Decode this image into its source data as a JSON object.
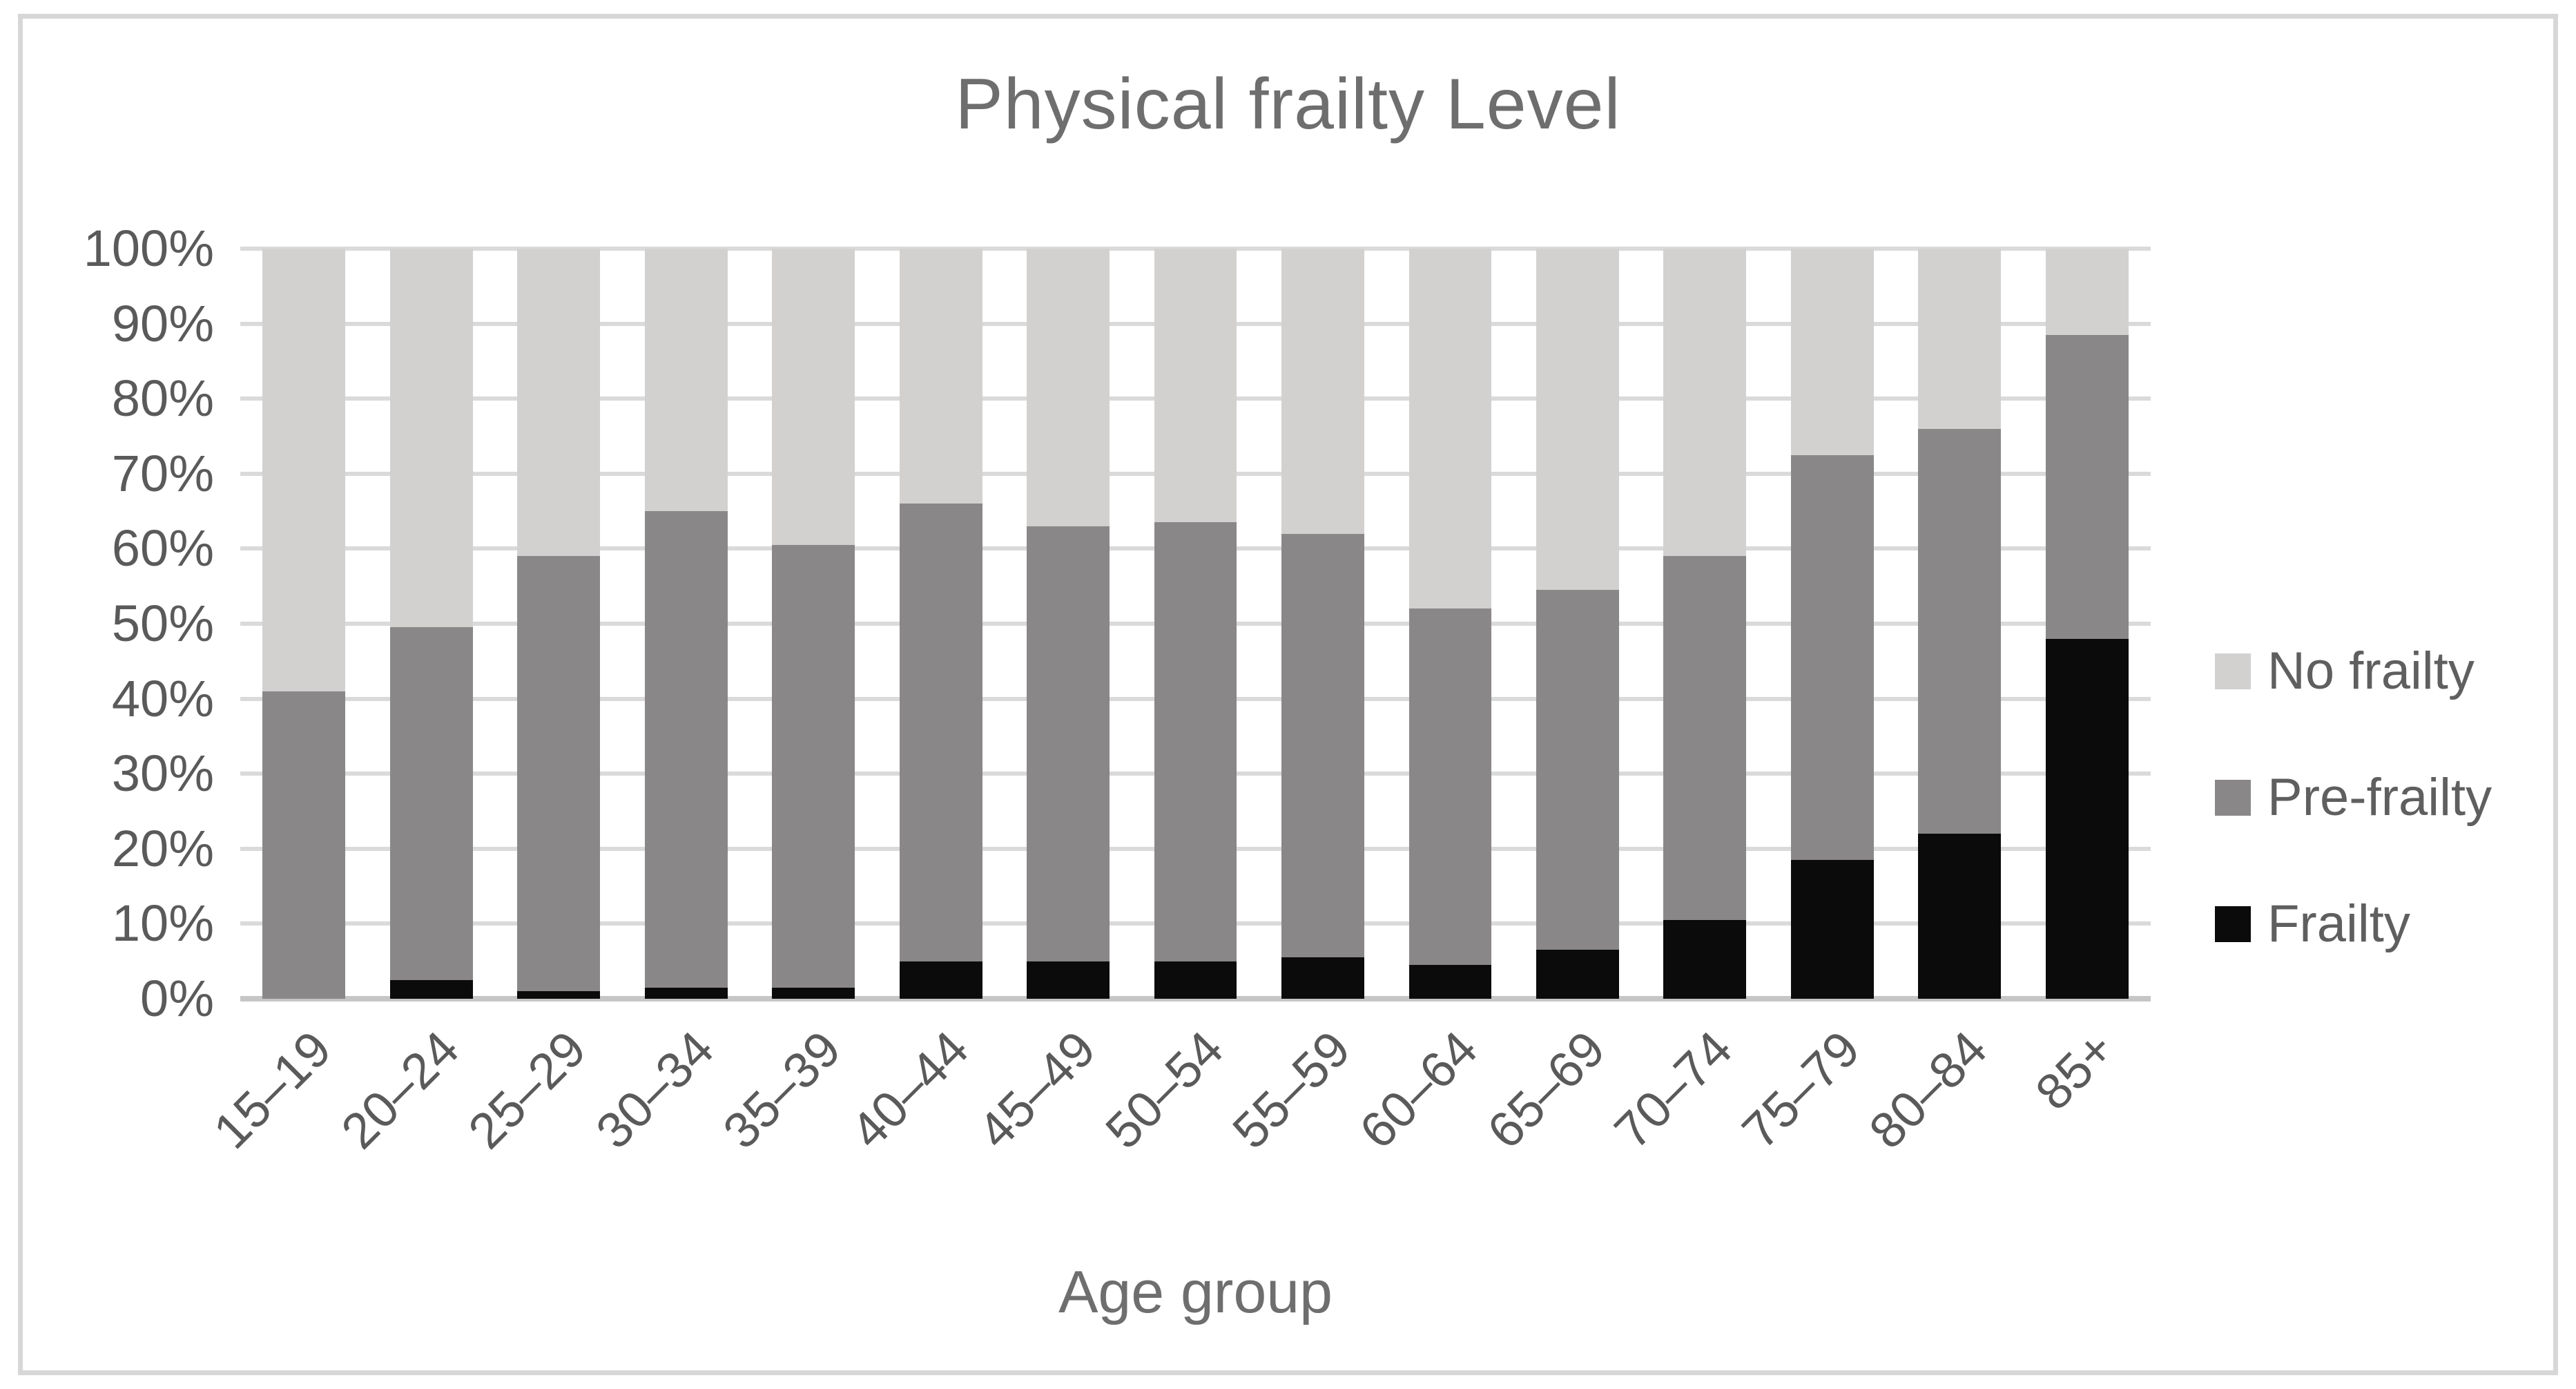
{
  "figure": {
    "title": "Physical frailty Level",
    "x_axis_title": "Age group"
  },
  "legend": {
    "position": "right",
    "items": [
      {
        "label": "No frailty",
        "color": "#d3d0d0"
      },
      {
        "label": "Pre-frailty",
        "color": "#8a8788"
      },
      {
        "label": "Frailty",
        "color": "#0b0b0b"
      }
    ]
  },
  "colors": {
    "no_frailty": "#d3d0d0",
    "pre_frailty": "#8a8788",
    "frailty": "#0b0b0b",
    "gridline": "#dadada",
    "axis_line": "#c6c6c6",
    "tick_text": "#5a5a5a",
    "title_text": "#6e6e6e",
    "frame_border": "#d7d7d7"
  },
  "chart_data": {
    "type": "bar",
    "stacked": true,
    "stacked_as": "percent",
    "title": "Physical frailty Level",
    "xlabel": "Age group",
    "ylabel": "",
    "ylim": [
      0,
      100
    ],
    "y_step": 10,
    "y_tick_labels": [
      "0%",
      "10%",
      "20%",
      "30%",
      "40%",
      "50%",
      "60%",
      "70%",
      "80%",
      "90%",
      "100%"
    ],
    "grid": true,
    "legend_position": "right",
    "categories": [
      "15–19",
      "20–24",
      "25–29",
      "30–34",
      "35–39",
      "40–44",
      "45–49",
      "50–54",
      "55–59",
      "60–64",
      "65–69",
      "70–74",
      "75–79",
      "80–84",
      "85+"
    ],
    "series": [
      {
        "name": "Frailty",
        "color": "#0b0b0b",
        "values": [
          0,
          2.5,
          1,
          1.5,
          1.5,
          5,
          5,
          5,
          5.5,
          4.5,
          6.5,
          10.5,
          18.5,
          22,
          48
        ]
      },
      {
        "name": "Pre-frailty",
        "color": "#8a8788",
        "values": [
          41,
          47,
          58,
          63.5,
          59,
          61,
          58,
          58.5,
          56.5,
          47.5,
          48,
          48.5,
          54,
          54,
          40.5
        ]
      },
      {
        "name": "No frailty",
        "color": "#d3d0d0",
        "values": [
          59,
          50.5,
          41,
          35,
          39.5,
          34,
          37,
          36.5,
          38,
          48,
          45.5,
          41,
          27.5,
          24,
          11.5
        ]
      }
    ]
  }
}
